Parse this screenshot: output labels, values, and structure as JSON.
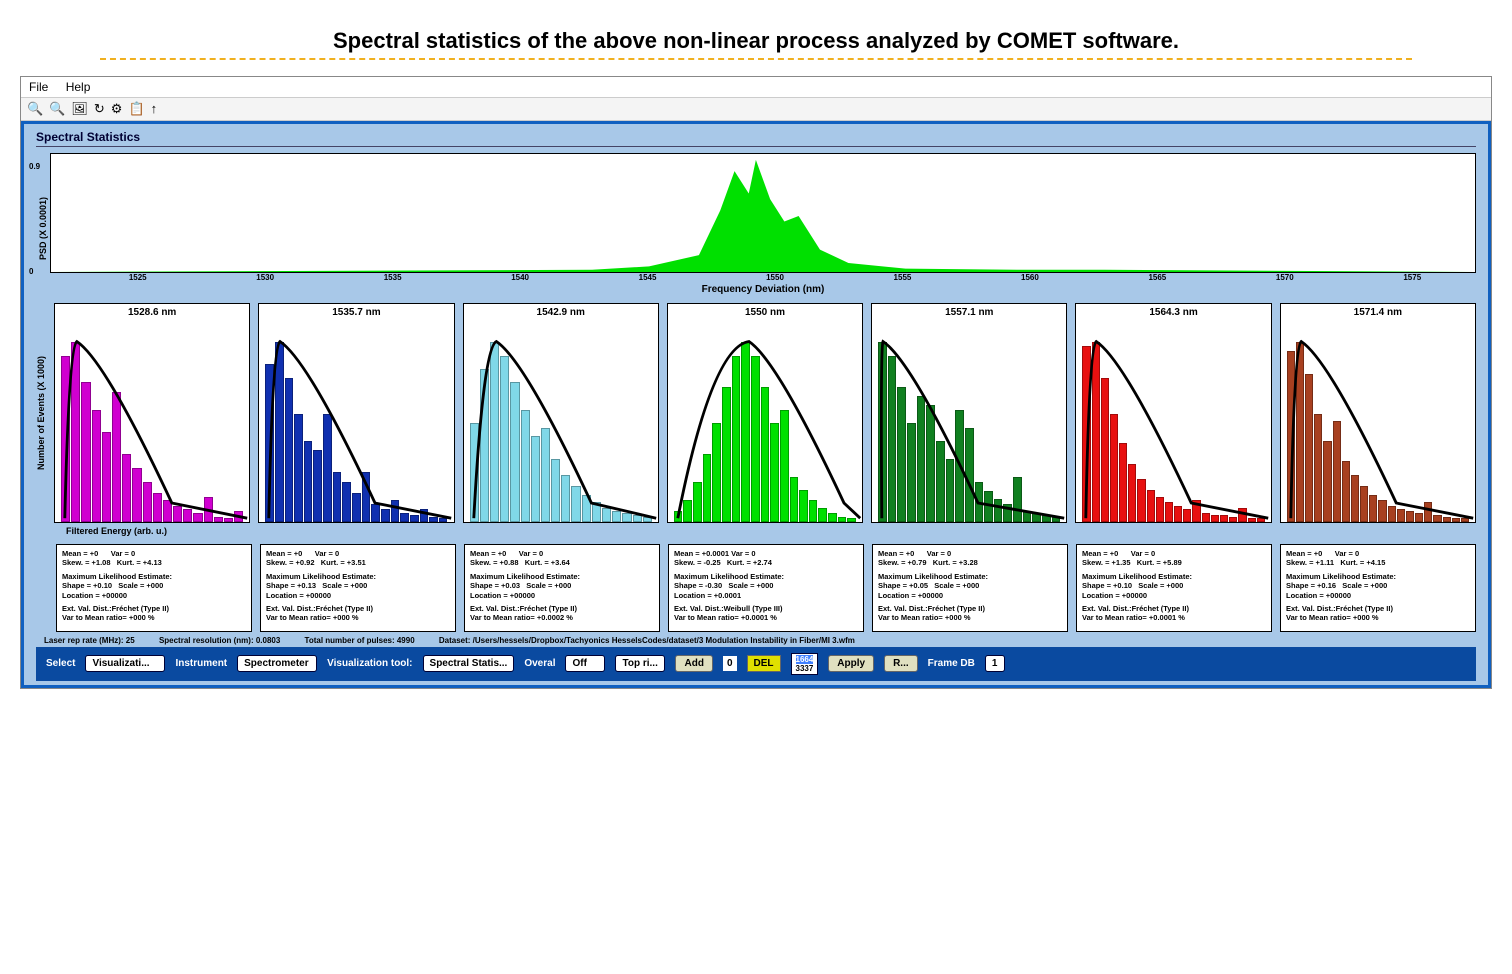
{
  "page_title": "Spectral statistics of the above non-linear process analyzed by COMET software.",
  "menubar": {
    "file": "File",
    "help": "Help"
  },
  "toolbar_icons": [
    "🔍",
    "🔍",
    "🖼",
    "↻",
    "⚙",
    "📋",
    "↑"
  ],
  "panel_title": "Spectral Statistics",
  "psd_chart": {
    "ylabel": "PSD (X 0.0001)",
    "xlabel": "Frequency Deviation (nm)",
    "yticks": [
      "0.9",
      "0"
    ],
    "xticks": [
      "1525",
      "1530",
      "1535",
      "1540",
      "1545",
      "1550",
      "1555",
      "1560",
      "1565",
      "1570",
      "1575"
    ],
    "fill_color": "#00e000",
    "background": "#ffffff",
    "peak_points": [
      [
        0.38,
        0.02
      ],
      [
        0.42,
        0.05
      ],
      [
        0.455,
        0.15
      ],
      [
        0.47,
        0.55
      ],
      [
        0.48,
        0.9
      ],
      [
        0.49,
        0.7
      ],
      [
        0.495,
        1.0
      ],
      [
        0.505,
        0.65
      ],
      [
        0.515,
        0.45
      ],
      [
        0.525,
        0.5
      ],
      [
        0.54,
        0.2
      ],
      [
        0.56,
        0.08
      ],
      [
        0.6,
        0.03
      ],
      [
        0.68,
        0.02
      ],
      [
        0.74,
        0.02
      ]
    ]
  },
  "hist_ylabel": "Number of Events (X 1000)",
  "hist_xlabel": "Filtered Energy (arb. u.)",
  "histograms": [
    {
      "title": "1528.6 nm",
      "color": "#d000d0",
      "ytick": "0.3",
      "bars": [
        92,
        100,
        78,
        62,
        50,
        72,
        38,
        30,
        22,
        16,
        12,
        9,
        7,
        5,
        14,
        3,
        2,
        6
      ]
    },
    {
      "title": "1535.7 nm",
      "color": "#1030b0",
      "ytick": "0.3",
      "bars": [
        88,
        100,
        80,
        60,
        45,
        40,
        60,
        28,
        22,
        16,
        28,
        10,
        7,
        12,
        5,
        4,
        7,
        3,
        2
      ]
    },
    {
      "title": "1542.9 nm",
      "color": "#80d8e8",
      "ytick": "0.5",
      "bars": [
        55,
        85,
        100,
        92,
        78,
        62,
        48,
        52,
        35,
        26,
        20,
        15,
        11,
        8,
        6,
        5,
        4,
        3
      ]
    },
    {
      "title": "1550 nm",
      "color": "#00e000",
      "ytick": "0.4",
      "bars": [
        6,
        12,
        22,
        38,
        55,
        75,
        92,
        100,
        92,
        75,
        55,
        62,
        25,
        18,
        12,
        8,
        5,
        3,
        2
      ]
    },
    {
      "title": "1557.1 nm",
      "color": "#108020",
      "ytick": "0.3",
      "bars": [
        100,
        92,
        75,
        55,
        70,
        65,
        45,
        35,
        62,
        52,
        22,
        17,
        13,
        10,
        25,
        6,
        5,
        4,
        3
      ]
    },
    {
      "title": "1564.3 nm",
      "color": "#e81010",
      "ytick": "0.6",
      "bars": [
        98,
        100,
        80,
        60,
        44,
        32,
        24,
        18,
        14,
        11,
        9,
        7,
        12,
        5,
        4,
        4,
        3,
        8,
        2,
        2
      ]
    },
    {
      "title": "1571.4 nm",
      "color": "#a84020",
      "ytick": "0.3",
      "bars": [
        95,
        100,
        82,
        60,
        45,
        56,
        34,
        26,
        20,
        15,
        12,
        9,
        7,
        6,
        5,
        11,
        4,
        3,
        2,
        2
      ]
    }
  ],
  "stats": [
    {
      "l1": "Mean = +0      Var = 0",
      "l2": "Skew. = +1.08   Kurt. = +4.13",
      "l3": "Maximum Likelihood Estimate:",
      "l4": "Shape = +0.10   Scale = +000",
      "l5": "Location = +00000",
      "l6": "Ext. Val. Dist.:Fréchet (Type II)",
      "l7": "Var to Mean ratio= +000 %"
    },
    {
      "l1": "Mean = +0      Var = 0",
      "l2": "Skew. = +0.92   Kurt. = +3.51",
      "l3": "Maximum Likelihood Estimate:",
      "l4": "Shape = +0.13   Scale = +000",
      "l5": "Location = +00000",
      "l6": "Ext. Val. Dist.:Fréchet (Type II)",
      "l7": "Var to Mean ratio= +000 %"
    },
    {
      "l1": "Mean = +0      Var = 0",
      "l2": "Skew. = +0.88   Kurt. = +3.64",
      "l3": "Maximum Likelihood Estimate:",
      "l4": "Shape = +0.03   Scale = +000",
      "l5": "Location = +00000",
      "l6": "Ext. Val. Dist.:Fréchet (Type II)",
      "l7": "Var to Mean ratio= +0.0002 %"
    },
    {
      "l1": "Mean = +0.0001 Var = 0",
      "l2": "Skew. = -0.25   Kurt. = +2.74",
      "l3": "Maximum Likelihood Estimate:",
      "l4": "Shape = -0.30   Scale = +000",
      "l5": "Location = +0.0001",
      "l6": "Ext. Val. Dist.:Weibull (Type III)",
      "l7": "Var to Mean ratio= +0.0001 %"
    },
    {
      "l1": "Mean = +0      Var = 0",
      "l2": "Skew. = +0.79   Kurt. = +3.28",
      "l3": "Maximum Likelihood Estimate:",
      "l4": "Shape = +0.05   Scale = +000",
      "l5": "Location = +00000",
      "l6": "Ext. Val. Dist.:Fréchet (Type II)",
      "l7": "Var to Mean ratio= +000 %"
    },
    {
      "l1": "Mean = +0      Var = 0",
      "l2": "Skew. = +1.35   Kurt. = +5.89",
      "l3": "Maximum Likelihood Estimate:",
      "l4": "Shape = +0.10   Scale = +000",
      "l5": "Location = +00000",
      "l6": "Ext. Val. Dist.:Fréchet (Type II)",
      "l7": "Var to Mean ratio= +0.0001 %"
    },
    {
      "l1": "Mean = +0      Var = 0",
      "l2": "Skew. = +1.11   Kurt. = +4.15",
      "l3": "Maximum Likelihood Estimate:",
      "l4": "Shape = +0.16   Scale = +000",
      "l5": "Location = +00000",
      "l6": "Ext. Val. Dist.:Fréchet (Type II)",
      "l7": "Var to Mean ratio= +000 %"
    }
  ],
  "info_line": {
    "laser": "Laser rep rate (MHz): 25",
    "spec": "Spectral resolution (nm): 0.0803",
    "total": "Total number of pulses: 4990",
    "dataset": "Dataset:  /Users/hessels/Dropbox/Tachyonics HesselsCodes/dataset/3 Modulation Instability in Fiber/MI 3.wfm"
  },
  "controls": {
    "select_lbl": "Select",
    "select_val": "Visualizati...",
    "instr_lbl": "Instrument",
    "instr_val": "Spectrometer",
    "vistool_lbl": "Visualization tool:",
    "vistool_val": "Spectral Statis...",
    "overal_lbl": "Overal",
    "overal_val": "Off",
    "overal_val2": "Top ri...",
    "add_btn": "Add",
    "del_btn": "DEL",
    "list_val1": "1664",
    "list_val2": "3337",
    "apply_btn": "Apply",
    "r_btn": "R...",
    "frame_lbl": "Frame DB",
    "frame_val": "1"
  }
}
